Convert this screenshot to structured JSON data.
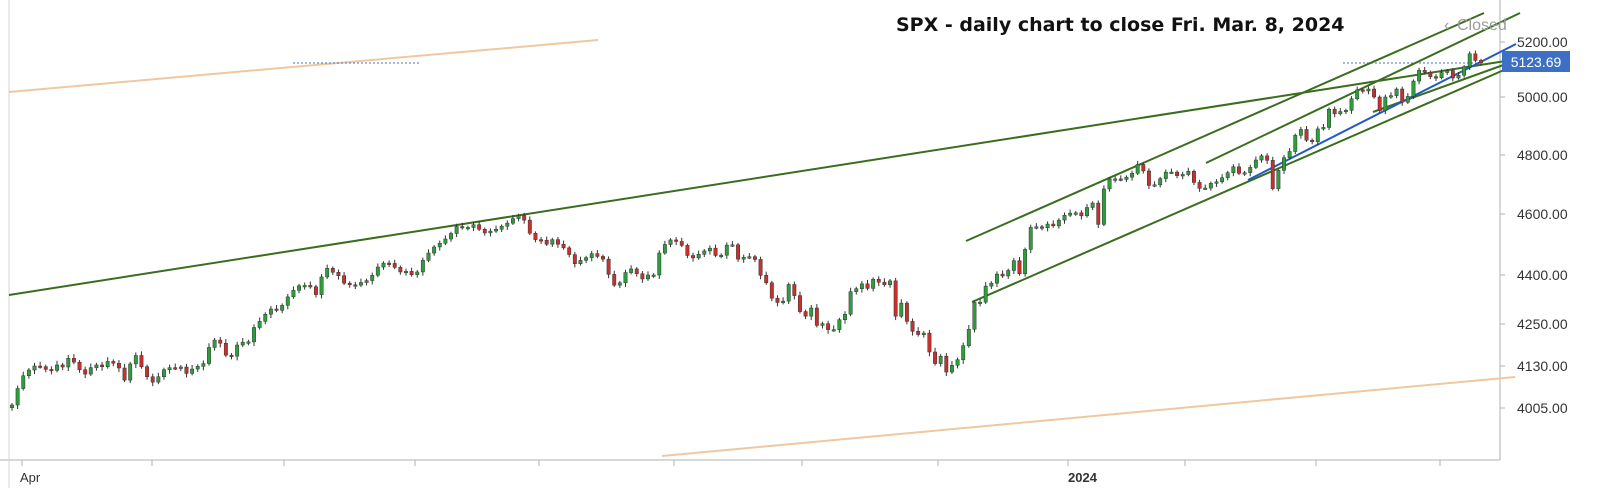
{
  "chart_data": {
    "type": "candlestick",
    "title": "SPX - daily chart to close Fri. Mar. 8, 2024",
    "status": "Closed",
    "status_icon": "back-arrow-icon",
    "last_price": "5123.69",
    "y_ticks": [
      "5200.00",
      "5000.00",
      "4800.00",
      "4600.00",
      "4400.00",
      "4250.00",
      "4130.00",
      "4005.00"
    ],
    "x_ticks": [
      {
        "label": "Apr",
        "bold": false
      },
      {
        "label": "",
        "bold": false
      },
      {
        "label": "",
        "bold": false
      },
      {
        "label": "",
        "bold": false
      },
      {
        "label": "",
        "bold": false
      },
      {
        "label": "",
        "bold": false
      },
      {
        "label": "",
        "bold": false
      },
      {
        "label": "",
        "bold": false
      },
      {
        "label": "2024",
        "bold": true
      },
      {
        "label": "",
        "bold": false
      },
      {
        "label": "",
        "bold": false
      },
      {
        "label": "",
        "bold": false
      }
    ],
    "grid": false,
    "colors": {
      "up": "#2e9e3c",
      "down": "#c9302c",
      "trend_green": "#3a6e1e",
      "trend_blue": "#1f5bc6",
      "trend_orange": "#f0c8a0",
      "price_tag": "#3d70c5",
      "axis": "#b0b0b0"
    },
    "closes": [
      4014,
      4063,
      4101,
      4118,
      4130,
      4128,
      4120,
      4117,
      4133,
      4127,
      4152,
      4141,
      4119,
      4106,
      4125,
      4133,
      4128,
      4143,
      4138,
      4124,
      4088,
      4136,
      4160,
      4128,
      4098,
      4082,
      4098,
      4119,
      4125,
      4124,
      4127,
      4108,
      4121,
      4129,
      4137,
      4183,
      4204,
      4195,
      4161,
      4158,
      4190,
      4198,
      4199,
      4240,
      4258,
      4280,
      4296,
      4292,
      4307,
      4333,
      4353,
      4367,
      4368,
      4364,
      4340,
      4394,
      4422,
      4409,
      4398,
      4375,
      4370,
      4369,
      4377,
      4383,
      4399,
      4426,
      4439,
      4438,
      4425,
      4410,
      4412,
      4401,
      4410,
      4448,
      4472,
      4492,
      4504,
      4518,
      4536,
      4559,
      4555,
      4556,
      4565,
      4550,
      4538,
      4544,
      4550,
      4560,
      4570,
      4585,
      4595,
      4580,
      4537,
      4516,
      4514,
      4501,
      4516,
      4501,
      4489,
      4467,
      4437,
      4448,
      4457,
      4470,
      4461,
      4452,
      4402,
      4369,
      4376,
      4408,
      4420,
      4404,
      4388,
      4400,
      4400,
      4472,
      4500,
      4515,
      4510,
      4497,
      4464,
      4456,
      4468,
      4479,
      4488,
      4464,
      4465,
      4498,
      4499,
      4452,
      4458,
      4460,
      4451,
      4399,
      4376,
      4329,
      4316,
      4320,
      4371,
      4337,
      4288,
      4274,
      4299,
      4246,
      4251,
      4234,
      4234,
      4263,
      4280,
      4349,
      4358,
      4373,
      4359,
      4387,
      4378,
      4370,
      4382,
      4274,
      4314,
      4258,
      4229,
      4220,
      4224,
      4170,
      4137,
      4158,
      4112,
      4132,
      4148,
      4188,
      4235,
      4316,
      4317,
      4366,
      4375,
      4403,
      4397,
      4415,
      4447,
      4404,
      4484,
      4556,
      4558,
      4555,
      4567,
      4561,
      4580,
      4596,
      4603,
      4604,
      4594,
      4622,
      4637,
      4566,
      4685,
      4719,
      4719,
      4717,
      4725,
      4738,
      4768,
      4746,
      4697,
      4699,
      4720,
      4742,
      4742,
      4730,
      4734,
      4745,
      4707,
      4687,
      4688,
      4704,
      4709,
      4723,
      4740,
      4760,
      4738,
      4740,
      4758,
      4783,
      4797,
      4782,
      4686,
      4748,
      4791,
      4812,
      4868,
      4888,
      4851,
      4846,
      4890,
      4895,
      4958,
      4942,
      4950,
      4954,
      4994,
      5026,
      5022,
      5029,
      5000,
      4953,
      5000,
      5005,
      5029,
      4982,
      5002,
      5058,
      5097,
      5090,
      5074,
      5070,
      5089,
      5096,
      5069,
      5079,
      5110,
      5157,
      5133,
      5124
    ]
  }
}
